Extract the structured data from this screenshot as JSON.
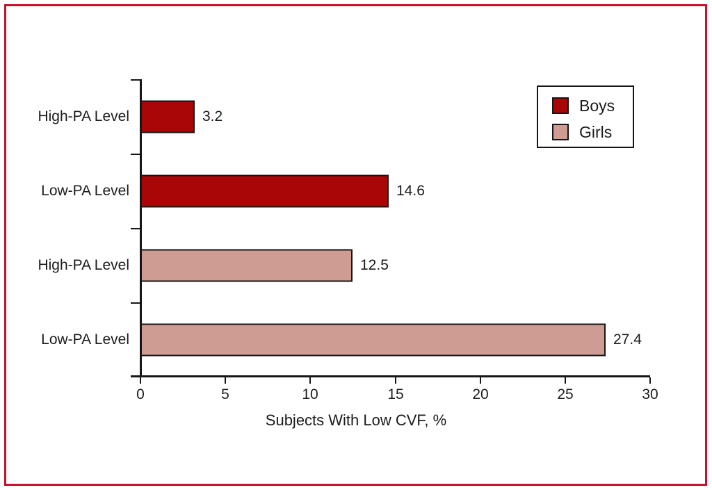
{
  "colors": {
    "boys": "#A90608",
    "girls": "#CE9C93",
    "frame": "#C6112C",
    "axis": "#161616"
  },
  "chart_data": {
    "type": "bar",
    "orientation": "horizontal",
    "title": "",
    "xlabel": "Subjects With Low CVF, %",
    "ylabel": "",
    "xlim": [
      0,
      30
    ],
    "x_ticks": [
      0,
      5,
      10,
      15,
      20,
      25,
      30
    ],
    "grid": false,
    "legend_position": "top-right",
    "categories": [
      "High-PA Level",
      "Low-PA Level",
      "High-PA Level",
      "Low-PA Level"
    ],
    "series": [
      {
        "name": "Boys",
        "categories": [
          "High-PA Level",
          "Low-PA Level"
        ],
        "values": [
          3.2,
          14.6
        ]
      },
      {
        "name": "Girls",
        "categories": [
          "High-PA Level",
          "Low-PA Level"
        ],
        "values": [
          12.5,
          27.4
        ]
      }
    ],
    "bars": [
      {
        "category": "High-PA Level",
        "series": "Boys",
        "value": 3.2,
        "value_label": "3.2"
      },
      {
        "category": "Low-PA Level",
        "series": "Boys",
        "value": 14.6,
        "value_label": "14.6"
      },
      {
        "category": "High-PA Level",
        "series": "Girls",
        "value": 12.5,
        "value_label": "12.5"
      },
      {
        "category": "Low-PA Level",
        "series": "Girls",
        "value": 27.4,
        "value_label": "27.4"
      }
    ]
  }
}
